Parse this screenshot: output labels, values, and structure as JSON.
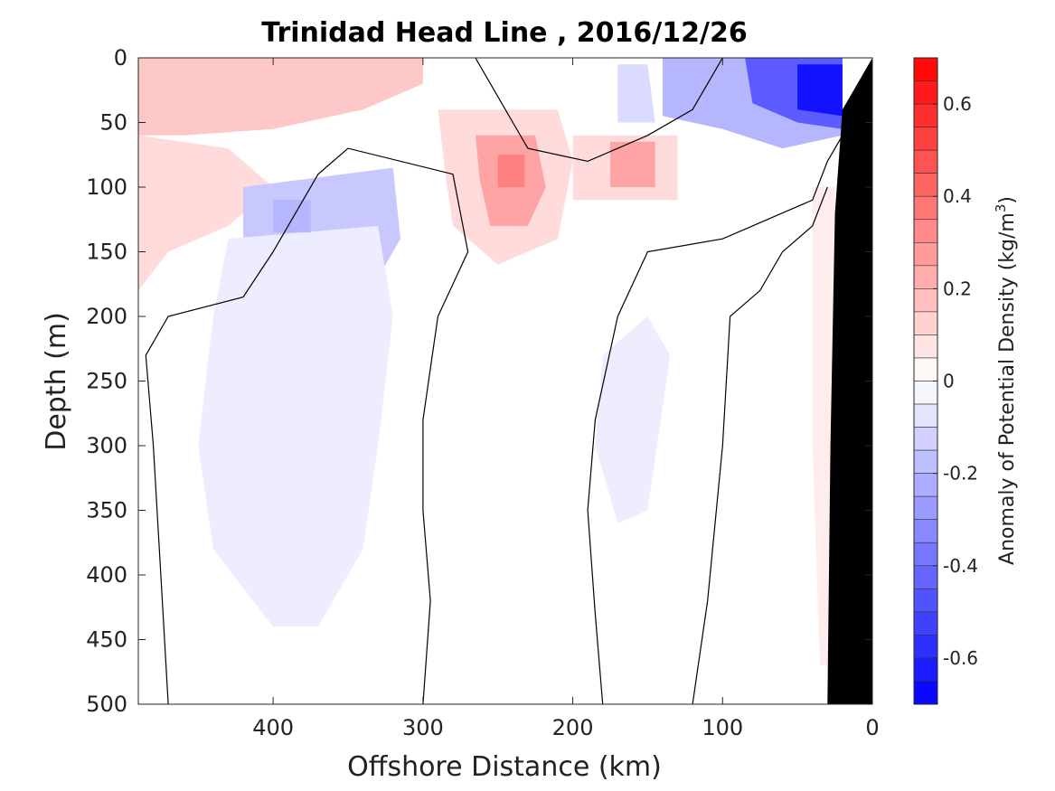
{
  "chart_data": {
    "type": "heatmap",
    "title": "Trinidad Head Line , 2016/12/26",
    "xlabel": "Offshore Distance (km)",
    "ylabel": "Depth (m)",
    "xlim": [
      490,
      0
    ],
    "ylim": [
      0,
      500
    ],
    "x_reversed": true,
    "y_reversed": true,
    "x_ticks": [
      400,
      300,
      200,
      100,
      0
    ],
    "y_ticks": [
      0,
      50,
      100,
      150,
      200,
      250,
      300,
      350,
      400,
      450,
      500
    ],
    "colorbar": {
      "label_prefix": "Anomaly of Potential Density (kg/m",
      "label_superscript": "3",
      "label_suffix": ")",
      "range": [
        -0.7,
        0.7
      ],
      "step": 0.05,
      "ticks": [
        0.6,
        0.4,
        0.2,
        0,
        -0.2,
        -0.4,
        -0.6
      ],
      "tick_labels": [
        "0.6",
        "0.4",
        "0.2",
        "0",
        "-0.2",
        "-0.4",
        "-0.6"
      ],
      "positive_color": "#ff0000",
      "negative_color": "#0000ff",
      "neutral_color": "#ffffff"
    },
    "features": [
      {
        "kind": "positive",
        "value": 0.15,
        "points": [
          [
            490,
            0
          ],
          [
            300,
            0
          ],
          [
            300,
            20
          ],
          [
            340,
            40
          ],
          [
            400,
            55
          ],
          [
            460,
            60
          ],
          [
            490,
            60
          ]
        ]
      },
      {
        "kind": "positive",
        "value": 0.1,
        "points": [
          [
            490,
            60
          ],
          [
            430,
            70
          ],
          [
            400,
            100
          ],
          [
            430,
            130
          ],
          [
            470,
            150
          ],
          [
            490,
            180
          ]
        ]
      },
      {
        "kind": "positive",
        "value": 0.1,
        "points": [
          [
            290,
            40
          ],
          [
            210,
            40
          ],
          [
            200,
            80
          ],
          [
            210,
            140
          ],
          [
            250,
            160
          ],
          [
            280,
            130
          ],
          [
            285,
            90
          ]
        ]
      },
      {
        "kind": "positive",
        "value": 0.25,
        "points": [
          [
            265,
            60
          ],
          [
            225,
            60
          ],
          [
            218,
            100
          ],
          [
            230,
            130
          ],
          [
            255,
            130
          ],
          [
            262,
            95
          ]
        ]
      },
      {
        "kind": "positive",
        "value": 0.35,
        "points": [
          [
            250,
            75
          ],
          [
            232,
            75
          ],
          [
            232,
            100
          ],
          [
            250,
            100
          ]
        ]
      },
      {
        "kind": "positive",
        "value": 0.1,
        "points": [
          [
            200,
            60
          ],
          [
            130,
            60
          ],
          [
            130,
            110
          ],
          [
            200,
            110
          ]
        ]
      },
      {
        "kind": "positive",
        "value": 0.25,
        "points": [
          [
            175,
            65
          ],
          [
            145,
            65
          ],
          [
            145,
            100
          ],
          [
            175,
            100
          ]
        ]
      },
      {
        "kind": "positive",
        "value": 0.05,
        "points": [
          [
            40,
            100
          ],
          [
            25,
            100
          ],
          [
            25,
            470
          ],
          [
            35,
            470
          ],
          [
            40,
            300
          ]
        ]
      },
      {
        "kind": "negative",
        "value": -0.15,
        "points": [
          [
            420,
            100
          ],
          [
            320,
            85
          ],
          [
            315,
            140
          ],
          [
            330,
            170
          ],
          [
            350,
            180
          ],
          [
            420,
            160
          ]
        ]
      },
      {
        "kind": "negative",
        "value": -0.05,
        "points": [
          [
            430,
            140
          ],
          [
            330,
            130
          ],
          [
            320,
            200
          ],
          [
            330,
            300
          ],
          [
            340,
            380
          ],
          [
            370,
            440
          ],
          [
            400,
            440
          ],
          [
            440,
            380
          ],
          [
            450,
            300
          ],
          [
            440,
            200
          ]
        ]
      },
      {
        "kind": "negative",
        "value": -0.2,
        "points": [
          [
            400,
            110
          ],
          [
            375,
            110
          ],
          [
            375,
            135
          ],
          [
            400,
            135
          ]
        ]
      },
      {
        "kind": "negative",
        "value": -0.05,
        "points": [
          [
            165,
            215
          ],
          [
            150,
            200
          ],
          [
            135,
            230
          ],
          [
            150,
            350
          ],
          [
            170,
            360
          ],
          [
            185,
            300
          ],
          [
            180,
            230
          ]
        ]
      },
      {
        "kind": "negative",
        "value": -0.1,
        "points": [
          [
            170,
            5
          ],
          [
            150,
            5
          ],
          [
            145,
            50
          ],
          [
            170,
            50
          ]
        ]
      },
      {
        "kind": "negative",
        "value": -0.2,
        "points": [
          [
            140,
            0
          ],
          [
            20,
            0
          ],
          [
            20,
            60
          ],
          [
            60,
            70
          ],
          [
            100,
            55
          ],
          [
            140,
            45
          ]
        ]
      },
      {
        "kind": "negative",
        "value": -0.45,
        "points": [
          [
            85,
            0
          ],
          [
            20,
            0
          ],
          [
            20,
            55
          ],
          [
            50,
            50
          ],
          [
            80,
            35
          ]
        ]
      },
      {
        "kind": "negative",
        "value": -0.65,
        "points": [
          [
            50,
            5
          ],
          [
            20,
            5
          ],
          [
            20,
            45
          ],
          [
            50,
            40
          ]
        ]
      }
    ],
    "zero_contours": [
      [
        [
          470,
          500
        ],
        [
          475,
          400
        ],
        [
          480,
          300
        ],
        [
          485,
          230
        ],
        [
          470,
          200
        ],
        [
          420,
          185
        ],
        [
          400,
          150
        ],
        [
          370,
          90
        ],
        [
          350,
          70
        ],
        [
          280,
          90
        ],
        [
          270,
          150
        ],
        [
          290,
          200
        ],
        [
          300,
          280
        ],
        [
          300,
          350
        ],
        [
          295,
          420
        ],
        [
          300,
          500
        ]
      ],
      [
        [
          180,
          500
        ],
        [
          185,
          430
        ],
        [
          190,
          350
        ],
        [
          185,
          280
        ],
        [
          170,
          200
        ],
        [
          150,
          150
        ],
        [
          100,
          140
        ],
        [
          80,
          130
        ],
        [
          60,
          120
        ],
        [
          40,
          110
        ],
        [
          30,
          80
        ],
        [
          20,
          60
        ]
      ],
      [
        [
          120,
          500
        ],
        [
          110,
          420
        ],
        [
          100,
          300
        ],
        [
          95,
          200
        ],
        [
          75,
          180
        ],
        [
          60,
          150
        ],
        [
          40,
          130
        ],
        [
          30,
          100
        ]
      ],
      [
        [
          265,
          0
        ],
        [
          240,
          50
        ],
        [
          230,
          70
        ],
        [
          190,
          80
        ],
        [
          150,
          60
        ],
        [
          120,
          40
        ],
        [
          110,
          20
        ],
        [
          100,
          0
        ]
      ]
    ],
    "land_mask": [
      [
        30,
        500
      ],
      [
        0,
        500
      ],
      [
        0,
        0
      ],
      [
        20,
        40
      ],
      [
        25,
        120
      ],
      [
        28,
        300
      ]
    ]
  }
}
